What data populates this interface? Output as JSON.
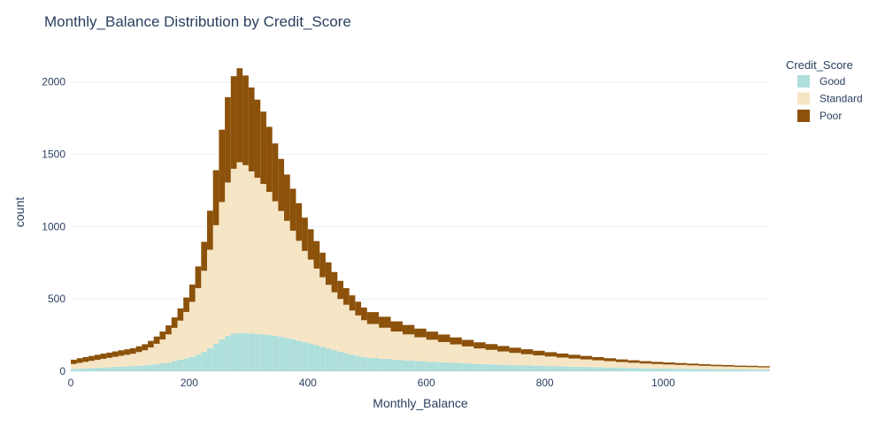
{
  "chart_data": {
    "type": "bar",
    "stacked": true,
    "title": "Monthly_Balance Distribution by Credit_Score",
    "xlabel": "Monthly_Balance",
    "ylabel": "count",
    "xlim": [
      0,
      1180
    ],
    "ylim": [
      0,
      2200
    ],
    "x_ticks": [
      0,
      200,
      400,
      600,
      800,
      1000
    ],
    "y_ticks": [
      0,
      500,
      1000,
      1500,
      2000
    ],
    "grid": true,
    "legend": {
      "title": "Credit_Score",
      "position": "top-right"
    },
    "x": [
      0,
      10,
      20,
      30,
      40,
      50,
      60,
      70,
      80,
      90,
      100,
      110,
      120,
      130,
      140,
      150,
      160,
      170,
      180,
      190,
      200,
      210,
      220,
      230,
      240,
      250,
      260,
      270,
      280,
      290,
      300,
      310,
      320,
      330,
      340,
      350,
      360,
      370,
      380,
      390,
      400,
      410,
      420,
      430,
      440,
      450,
      460,
      470,
      480,
      490,
      500,
      520,
      540,
      560,
      580,
      600,
      620,
      640,
      660,
      680,
      700,
      720,
      740,
      760,
      780,
      800,
      820,
      840,
      860,
      880,
      900,
      920,
      940,
      960,
      980,
      1000,
      1020,
      1040,
      1060,
      1080,
      1100,
      1120,
      1140,
      1160
    ],
    "series": [
      {
        "name": "Good",
        "color": "#afdfdb",
        "values": [
          15,
          18,
          20,
          22,
          24,
          26,
          28,
          30,
          32,
          34,
          36,
          38,
          40,
          45,
          50,
          55,
          60,
          70,
          80,
          90,
          100,
          115,
          135,
          160,
          190,
          220,
          245,
          260,
          265,
          265,
          262,
          258,
          255,
          250,
          245,
          238,
          230,
          222,
          212,
          202,
          192,
          180,
          170,
          158,
          146,
          135,
          125,
          115,
          106,
          98,
          92,
          86,
          80,
          75,
          70,
          66,
          62,
          58,
          54,
          50,
          48,
          45,
          42,
          40,
          38,
          36,
          34,
          32,
          30,
          28,
          26,
          24,
          22,
          20,
          19,
          18,
          17,
          16,
          15,
          14,
          13,
          12,
          12,
          11
        ]
      },
      {
        "name": "Standard",
        "color": "#f6e5c4",
        "values": [
          35,
          40,
          45,
          50,
          55,
          60,
          65,
          70,
          75,
          80,
          85,
          95,
          105,
          120,
          140,
          165,
          195,
          230,
          270,
          320,
          380,
          460,
          560,
          680,
          820,
          950,
          1060,
          1140,
          1180,
          1160,
          1120,
          1080,
          1040,
          990,
          930,
          870,
          810,
          750,
          690,
          630,
          580,
          530,
          480,
          440,
          400,
          365,
          335,
          305,
          280,
          255,
          235,
          215,
          195,
          180,
          165,
          152,
          140,
          128,
          118,
          108,
          100,
          92,
          85,
          78,
          72,
          66,
          61,
          56,
          52,
          48,
          44,
          40,
          37,
          34,
          31,
          29,
          27,
          25,
          23,
          21,
          20,
          18,
          17,
          16
        ]
      },
      {
        "name": "Poor",
        "color": "#8c510a",
        "values": [
          30,
          32,
          33,
          34,
          35,
          36,
          36,
          37,
          38,
          38,
          39,
          40,
          42,
          45,
          50,
          55,
          62,
          72,
          85,
          100,
          120,
          150,
          200,
          270,
          380,
          500,
          590,
          640,
          650,
          620,
          580,
          540,
          500,
          450,
          400,
          360,
          320,
          290,
          260,
          230,
          210,
          190,
          170,
          155,
          140,
          125,
          115,
          105,
          95,
          88,
          82,
          76,
          70,
          65,
          60,
          56,
          52,
          48,
          45,
          42,
          40,
          38,
          36,
          34,
          32,
          30,
          28,
          26,
          24,
          22,
          20,
          18,
          17,
          16,
          15,
          14,
          13,
          12,
          11,
          10,
          10,
          9,
          9,
          8
        ]
      }
    ]
  }
}
